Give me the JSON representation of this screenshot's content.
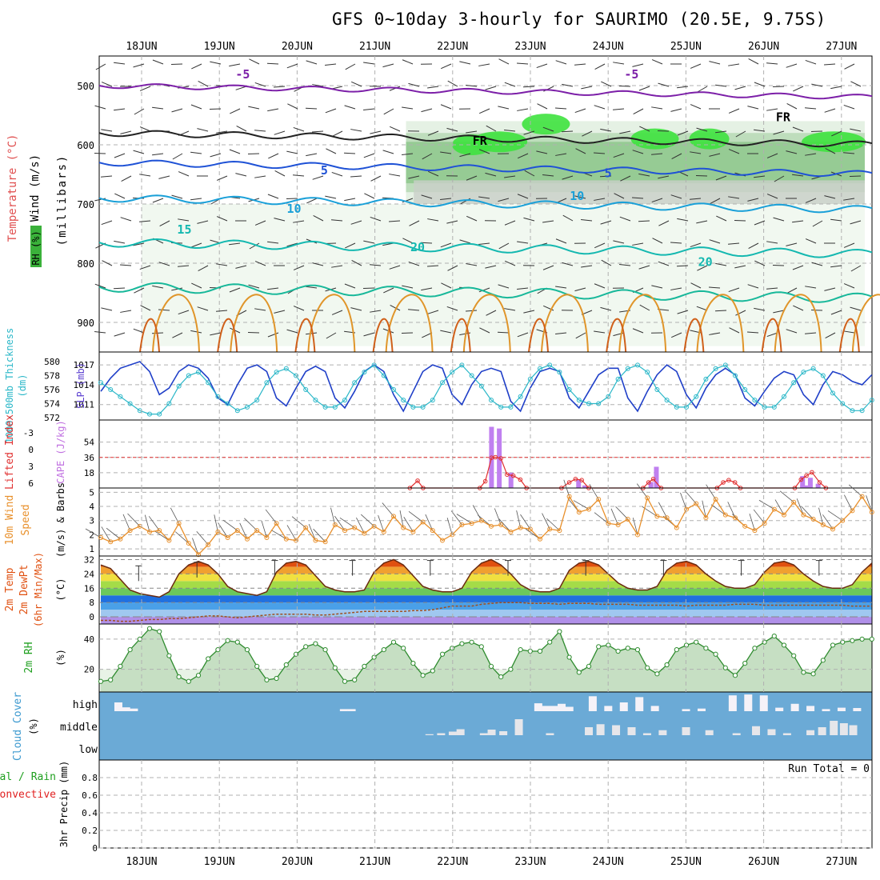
{
  "header": {
    "title": "GFS 0~10day 3-hourly for SAURIMO (20.5E, 9.75S)"
  },
  "colors": {
    "panel_border": "#000000",
    "grid": "#b0b0b0",
    "temp_lines": "#7c2bb0",
    "slp_line": "#1f3fc8",
    "thickness_line": "#2ab7c8",
    "cape_bar": "#c080f0",
    "lifted_index": "#e03030",
    "wind_speed": "#e8902c",
    "temp_fill_top": "#d94010",
    "dewpoint": "#a05020",
    "rh_fill": "#69a86a",
    "cloud_fill": "#6baad6",
    "precip_label_total": "#20a020",
    "precip_label_conv": "#e02020"
  },
  "chart_data": [
    {
      "id": "upper_air",
      "type": "line",
      "title": "Temperature (°C) / Wind (m/s) / RH (%)",
      "ylabel": "(millibars)",
      "ylabel_parts": [
        "Temperature",
        "(°C)",
        "Wind",
        "(m/s)"
      ],
      "ylabel_rh": "RH (%)",
      "x_ticks": [
        "18JUN",
        "19JUN",
        "20JUN",
        "21JUN",
        "22JUN",
        "23JUN",
        "24JUN",
        "25JUN",
        "26JUN",
        "27JUN"
      ],
      "y_ticks": [
        500,
        600,
        700,
        800,
        900
      ],
      "ylim": [
        450,
        950
      ],
      "contour_labels": [
        {
          "text": "-5",
          "day": 1.3,
          "p": 488
        },
        {
          "text": "-5",
          "day": 6.3,
          "p": 488
        },
        {
          "text": "FR",
          "day": 4.35,
          "p": 600
        },
        {
          "text": "FR",
          "day": 8.25,
          "p": 560
        },
        {
          "text": "5",
          "day": 2.35,
          "p": 650
        },
        {
          "text": "5",
          "day": 6.0,
          "p": 655
        },
        {
          "text": "10",
          "day": 1.96,
          "p": 715
        },
        {
          "text": "10",
          "day": 5.6,
          "p": 693
        },
        {
          "text": "15",
          "day": 0.55,
          "p": 750
        },
        {
          "text": "20",
          "day": 3.55,
          "p": 780
        },
        {
          "text": "20",
          "day": 7.25,
          "p": 805
        }
      ]
    },
    {
      "id": "slp_thickness",
      "type": "line",
      "ylabel_left": "1000-500mb Thickness (dm)",
      "ylabel_right": "SLP (mb)",
      "y_ticks_left": [
        572,
        574,
        576,
        578,
        580
      ],
      "y_ticks_right": [
        1011,
        1014,
        1017
      ],
      "series": [
        {
          "name": "SLP (mb)",
          "values": [
            1013.0,
            1015.0,
            1016.5,
            1017.0,
            1017.5,
            1016.0,
            1012.5,
            1013.5,
            1016.0,
            1017.0,
            1016.5,
            1015.0,
            1012.0,
            1011.0,
            1014.0,
            1016.5,
            1017.0,
            1016.0,
            1012.0,
            1010.8,
            1013.5,
            1016.0,
            1016.8,
            1016.0,
            1012.0,
            1010.5,
            1013.0,
            1016.0,
            1017.0,
            1016.0,
            1012.5,
            1010.0,
            1013.0,
            1016.0,
            1017.0,
            1016.5,
            1012.5,
            1011.0,
            1014.0,
            1016.0,
            1016.5,
            1016.0,
            1011.5,
            1010.0,
            1013.5,
            1016.0,
            1016.5,
            1016.0,
            1012.0,
            1010.5,
            1013.0,
            1015.5,
            1016.5,
            1016.5,
            1012.0,
            1010.0,
            1013.0,
            1015.5,
            1017.0,
            1016.0,
            1012.5,
            1010.5,
            1013.5,
            1015.5,
            1016.5,
            1015.5,
            1012.0,
            1010.8,
            1013.0,
            1015.0,
            1016.0,
            1015.5,
            1012.5,
            1011.0,
            1014.0,
            1016.0,
            1015.5,
            1014.5,
            1014.0,
            1015.5
          ]
        },
        {
          "name": "1000-500mb Thickness (dm)",
          "values": [
            577.0,
            576.0,
            575.0,
            574.0,
            573.0,
            572.5,
            572.5,
            574.0,
            576.5,
            578.0,
            578.5,
            577.0,
            575.0,
            574.0,
            573.0,
            573.5,
            574.5,
            577.0,
            578.5,
            579.0,
            578.0,
            576.0,
            574.5,
            573.5,
            573.5,
            574.5,
            577.0,
            578.5,
            579.5,
            578.0,
            576.0,
            574.5,
            573.5,
            573.5,
            574.5,
            577.0,
            578.5,
            579.5,
            578.0,
            576.5,
            574.5,
            573.5,
            573.5,
            575.0,
            577.5,
            579.0,
            579.5,
            578.5,
            576.0,
            574.5,
            574.0,
            574.0,
            575.0,
            577.5,
            579.0,
            579.5,
            578.5,
            576.0,
            574.5,
            573.5,
            573.5,
            575.0,
            577.5,
            579.0,
            579.5,
            578.0,
            576.0,
            574.5,
            573.5,
            573.5,
            575.0,
            577.0,
            578.5,
            579.0,
            578.0,
            575.5,
            574.0,
            573.0,
            573.0,
            574.5
          ]
        }
      ]
    },
    {
      "id": "cape_li",
      "type": "bar",
      "ylabel_left": "Lifted Index",
      "ylabel_right": "CAPE (J/kg)",
      "y_ticks_left": [
        "-3",
        "0",
        "3",
        "6"
      ],
      "y_ticks_right": [
        18,
        36,
        54
      ],
      "cape_bars": [
        {
          "day": 4.5,
          "value": 72
        },
        {
          "day": 4.6,
          "value": 70
        },
        {
          "day": 4.75,
          "value": 18
        },
        {
          "day": 5.62,
          "value": 10
        },
        {
          "day": 5.7,
          "value": 3
        },
        {
          "day": 6.55,
          "value": 7
        },
        {
          "day": 6.62,
          "value": 25
        },
        {
          "day": 8.5,
          "value": 3
        },
        {
          "day": 8.55,
          "value": 3
        },
        {
          "day": 8.5,
          "value": 14
        },
        {
          "day": 8.6,
          "value": 12
        },
        {
          "day": 8.7,
          "value": 5
        }
      ],
      "lifted_index": [
        {
          "day": 3.45,
          "value": 6
        },
        {
          "day": 3.55,
          "value": 4.7
        },
        {
          "day": 3.62,
          "value": 6
        },
        {
          "day": 4.35,
          "value": 6
        },
        {
          "day": 4.42,
          "value": 4.8
        },
        {
          "day": 4.5,
          "value": 0.6
        },
        {
          "day": 4.55,
          "value": 0.5
        },
        {
          "day": 4.62,
          "value": 0.7
        },
        {
          "day": 4.7,
          "value": 3.6
        },
        {
          "day": 4.78,
          "value": 3.8
        },
        {
          "day": 4.87,
          "value": 4.5
        },
        {
          "day": 4.95,
          "value": 6
        },
        {
          "day": 5.4,
          "value": 6
        },
        {
          "day": 5.5,
          "value": 5.0
        },
        {
          "day": 5.58,
          "value": 4.4
        },
        {
          "day": 5.66,
          "value": 4.6
        },
        {
          "day": 5.75,
          "value": 6
        },
        {
          "day": 6.45,
          "value": 6
        },
        {
          "day": 6.52,
          "value": 5.0
        },
        {
          "day": 6.58,
          "value": 4.4
        },
        {
          "day": 6.68,
          "value": 6
        },
        {
          "day": 7.4,
          "value": 6
        },
        {
          "day": 7.48,
          "value": 5.0
        },
        {
          "day": 7.55,
          "value": 4.6
        },
        {
          "day": 7.63,
          "value": 5.0
        },
        {
          "day": 7.7,
          "value": 6
        },
        {
          "day": 8.4,
          "value": 6
        },
        {
          "day": 8.48,
          "value": 4.5
        },
        {
          "day": 8.55,
          "value": 3.8
        },
        {
          "day": 8.62,
          "value": 3.2
        },
        {
          "day": 8.72,
          "value": 5.0
        },
        {
          "day": 8.8,
          "value": 6
        }
      ]
    },
    {
      "id": "wind10m",
      "type": "line",
      "ylabel": "10m Wind Speed (m/s) & Barbs",
      "y_ticks": [
        1,
        2,
        3,
        4,
        5
      ],
      "ylim": [
        0.5,
        5.3
      ],
      "values": [
        1.8,
        1.5,
        1.7,
        2.3,
        2.6,
        2.2,
        2.3,
        1.6,
        2.8,
        1.4,
        0.6,
        1.3,
        2.2,
        1.8,
        2.3,
        1.7,
        2.3,
        1.8,
        2.8,
        1.7,
        1.6,
        2.5,
        1.6,
        1.5,
        2.7,
        2.3,
        2.5,
        2.1,
        2.6,
        2.2,
        3.3,
        2.5,
        2.2,
        2.9,
        2.3,
        1.6,
        2.0,
        2.7,
        2.8,
        3.0,
        2.6,
        2.7,
        2.2,
        2.5,
        2.4,
        1.7,
        2.4,
        2.3,
        4.7,
        3.6,
        3.8,
        4.5,
        2.8,
        2.7,
        3.1,
        2.0,
        4.6,
        3.3,
        3.2,
        2.5,
        3.8,
        4.2,
        3.2,
        4.5,
        3.4,
        3.2,
        2.6,
        2.3,
        2.8,
        3.8,
        3.4,
        4.3,
        3.4,
        3.1,
        2.7,
        2.4,
        3.0,
        3.7,
        4.7,
        3.6
      ]
    },
    {
      "id": "temp2m",
      "type": "area",
      "ylabel_parts": [
        "2m Temp",
        "2m DewPt",
        "(6hr Min/Max)",
        "(°C)"
      ],
      "y_ticks": [
        0,
        8,
        16,
        24,
        32
      ],
      "ylim": [
        -4,
        34
      ],
      "temperature": [
        29,
        27,
        21,
        15,
        13,
        12,
        11,
        14,
        24,
        29,
        31,
        29,
        24,
        17,
        14,
        13,
        12,
        14,
        25,
        30,
        31,
        29,
        23,
        17,
        15,
        14,
        14,
        15,
        25,
        30,
        32,
        29,
        23,
        17,
        15,
        14,
        14,
        16,
        25,
        30,
        32,
        29,
        24,
        18,
        15,
        14,
        14,
        16,
        26,
        30,
        31,
        29,
        24,
        19,
        16,
        15,
        15,
        17,
        26,
        30,
        31,
        29,
        24,
        20,
        17,
        16,
        16,
        18,
        25,
        30,
        31,
        29,
        24,
        20,
        17,
        16,
        16,
        18,
        25,
        30
      ],
      "dewpoint": [
        -2,
        -2,
        -2.5,
        -2.5,
        -2,
        -1.5,
        -1.5,
        -1,
        -1,
        -0.5,
        0,
        0.5,
        0.5,
        0,
        -0.5,
        0,
        0.5,
        1,
        1.5,
        1.5,
        1.5,
        1.5,
        1,
        1,
        1.5,
        2,
        2.5,
        3,
        3,
        3,
        3,
        3,
        3.5,
        3.5,
        4,
        5,
        6,
        6,
        6,
        7,
        7.5,
        8,
        8,
        8,
        7.5,
        7.5,
        7.5,
        7,
        7.5,
        7.5,
        7.5,
        7,
        7,
        7,
        7,
        6.5,
        6.5,
        6.5,
        6.5,
        6.5,
        6,
        6.5,
        6.5,
        6.5,
        6.5,
        7,
        7,
        7,
        6.5,
        6.5,
        6.5,
        6.5,
        6.5,
        6.5,
        6.5,
        6.5,
        6.5,
        6,
        6,
        6
      ],
      "max_markers": [
        {
          "day": 0.25,
          "value": 28
        },
        {
          "day": 1.0,
          "value": 30
        },
        {
          "day": 2.0,
          "value": 31
        },
        {
          "day": 3.0,
          "value": 31
        },
        {
          "day": 4.0,
          "value": 31
        },
        {
          "day": 5.0,
          "value": 31
        },
        {
          "day": 6.0,
          "value": 31
        },
        {
          "day": 7.0,
          "value": 31
        },
        {
          "day": 8.0,
          "value": 31
        },
        {
          "day": 9.0,
          "value": 31
        }
      ]
    },
    {
      "id": "rh2m",
      "type": "area",
      "ylabel": "2m RH (%)",
      "y_ticks": [
        20,
        40
      ],
      "ylim": [
        5,
        50
      ],
      "values": [
        12,
        13,
        22,
        33,
        40,
        47,
        45,
        29,
        15,
        12,
        16,
        27,
        33,
        39,
        38,
        33,
        22,
        13,
        14,
        23,
        30,
        35,
        37,
        33,
        21,
        12,
        13,
        22,
        28,
        33,
        38,
        34,
        24,
        16,
        19,
        30,
        34,
        37,
        38,
        35,
        22,
        15,
        20,
        33,
        32,
        32,
        38,
        45,
        28,
        18,
        22,
        35,
        36,
        32,
        34,
        33,
        21,
        17,
        23,
        33,
        36,
        38,
        34,
        30,
        21,
        16,
        24,
        34,
        38,
        42,
        36,
        29,
        18,
        17,
        26,
        36,
        38,
        39,
        40,
        40
      ]
    },
    {
      "id": "cloud",
      "type": "area",
      "ylabel": "Cloud Cover (%)",
      "y_ticks": [
        "high",
        "middle",
        "low"
      ],
      "background": "#6baad6",
      "high_blocks": [
        {
          "day": -0.35,
          "value": 50
        },
        {
          "day": -0.25,
          "value": 22
        },
        {
          "day": -0.15,
          "value": 15
        },
        {
          "day": 2.55,
          "value": 12
        },
        {
          "day": 2.65,
          "value": 12
        },
        {
          "day": 5.05,
          "value": 45
        },
        {
          "day": 5.15,
          "value": 30
        },
        {
          "day": 5.25,
          "value": 30
        },
        {
          "day": 5.35,
          "value": 42
        },
        {
          "day": 5.45,
          "value": 25
        },
        {
          "day": 5.75,
          "value": 85
        },
        {
          "day": 5.95,
          "value": 30
        },
        {
          "day": 6.15,
          "value": 50
        },
        {
          "day": 6.35,
          "value": 80
        },
        {
          "day": 6.55,
          "value": 30
        },
        {
          "day": 6.95,
          "value": 12
        },
        {
          "day": 7.15,
          "value": 15
        },
        {
          "day": 7.55,
          "value": 90
        },
        {
          "day": 7.75,
          "value": 95
        },
        {
          "day": 7.95,
          "value": 90
        },
        {
          "day": 8.15,
          "value": 20
        },
        {
          "day": 8.35,
          "value": 42
        },
        {
          "day": 8.55,
          "value": 30
        },
        {
          "day": 8.75,
          "value": 12
        },
        {
          "day": 8.95,
          "value": 20
        },
        {
          "day": 9.15,
          "value": 18
        }
      ],
      "middle_blocks": [
        {
          "day": 3.65,
          "value": 5
        },
        {
          "day": 3.8,
          "value": 10
        },
        {
          "day": 3.95,
          "value": 18
        },
        {
          "day": 4.05,
          "value": 30
        },
        {
          "day": 4.35,
          "value": 10
        },
        {
          "day": 4.45,
          "value": 28
        },
        {
          "day": 4.6,
          "value": 20
        },
        {
          "day": 4.8,
          "value": 80
        },
        {
          "day": 5.2,
          "value": 10
        },
        {
          "day": 5.7,
          "value": 40
        },
        {
          "day": 5.85,
          "value": 55
        },
        {
          "day": 6.05,
          "value": 50
        },
        {
          "day": 6.25,
          "value": 40
        },
        {
          "day": 6.45,
          "value": 10
        },
        {
          "day": 6.65,
          "value": 25
        },
        {
          "day": 6.95,
          "value": 40
        },
        {
          "day": 7.25,
          "value": 25
        },
        {
          "day": 7.6,
          "value": 10
        },
        {
          "day": 7.85,
          "value": 45
        },
        {
          "day": 8.05,
          "value": 30
        },
        {
          "day": 8.25,
          "value": 10
        },
        {
          "day": 8.55,
          "value": 25
        },
        {
          "day": 8.7,
          "value": 40
        },
        {
          "day": 8.85,
          "value": 72
        },
        {
          "day": 8.98,
          "value": 60
        },
        {
          "day": 9.1,
          "value": 50
        }
      ]
    },
    {
      "id": "precip",
      "type": "bar",
      "ylabel_left_parts": [
        "Total / Rain",
        "Convective"
      ],
      "ylabel": "3hr Precip (mm)",
      "y_ticks": [
        0,
        0.2,
        0.4,
        0.6,
        0.8
      ],
      "ylim": [
        0,
        1.0
      ],
      "values": [],
      "run_total_label": "Run Total = 0"
    }
  ]
}
